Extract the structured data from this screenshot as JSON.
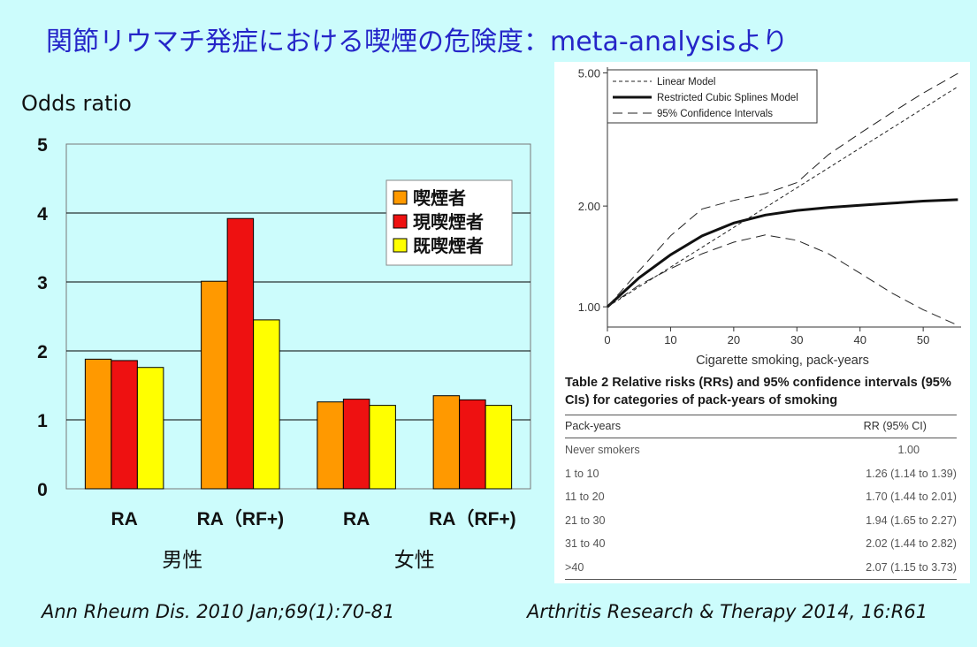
{
  "title": "関節リウマチ発症における喫煙の危険度：meta-analysisより",
  "chart_data": [
    {
      "type": "bar",
      "ylabel": "Odds ratio",
      "ylim": [
        0,
        5
      ],
      "yticks": [
        0,
        1,
        2,
        3,
        4,
        5
      ],
      "categories": [
        "RA",
        "RA（RF+)",
        "RA",
        "RA（RF+)"
      ],
      "groups": [
        {
          "label": "男性",
          "categories": [
            0,
            1
          ]
        },
        {
          "label": "女性",
          "categories": [
            2,
            3
          ]
        }
      ],
      "series": [
        {
          "name": "喫煙者",
          "color": "#ff9900",
          "values": [
            1.88,
            3.01,
            1.26,
            1.35
          ]
        },
        {
          "name": "現喫煙者",
          "color": "#ee1111",
          "values": [
            1.86,
            3.92,
            1.3,
            1.29
          ]
        },
        {
          "name": "既喫煙者",
          "color": "#ffff00",
          "values": [
            1.76,
            2.45,
            1.21,
            1.21
          ]
        }
      ],
      "grid": true,
      "legend": "top-right"
    },
    {
      "type": "line",
      "xlabel": "Cigarette smoking, pack-years",
      "ylabel": "",
      "xlim": [
        0,
        56
      ],
      "xticks": [
        0,
        10,
        20,
        30,
        40,
        50
      ],
      "ylim": [
        0.87,
        5.2
      ],
      "yscale": "log",
      "yticks": [
        1.0,
        2.0,
        5.0
      ],
      "ytick_labels": [
        "1.00",
        "2.00",
        "5.00"
      ],
      "legend": "top-left",
      "series": [
        {
          "name": "Linear Model",
          "style": "short-dash",
          "x": [
            0,
            55.5
          ],
          "y": [
            1.0,
            4.55
          ]
        },
        {
          "name": "Restricted Cubic Splines Model",
          "style": "solid-bold",
          "x": [
            0,
            5,
            10,
            15,
            20,
            25,
            30,
            35,
            40,
            45,
            50,
            55.5
          ],
          "y": [
            1.0,
            1.22,
            1.43,
            1.63,
            1.78,
            1.88,
            1.94,
            1.98,
            2.01,
            2.04,
            2.07,
            2.09
          ]
        },
        {
          "name": "95% Confidence Intervals",
          "style": "long-dash",
          "x": [
            0,
            5,
            10,
            15,
            20,
            25,
            30,
            35,
            40,
            45,
            50,
            55.5
          ],
          "y": [
            1.0,
            1.28,
            1.63,
            1.96,
            2.08,
            2.18,
            2.35,
            2.85,
            3.3,
            3.8,
            4.35,
            4.98
          ]
        },
        {
          "name": "",
          "style": "long-dash",
          "x": [
            0,
            5,
            10,
            15,
            20,
            25,
            30,
            35,
            40,
            45,
            50,
            55.5
          ],
          "y": [
            1.0,
            1.16,
            1.3,
            1.44,
            1.56,
            1.64,
            1.58,
            1.44,
            1.26,
            1.1,
            0.98,
            0.88
          ]
        }
      ]
    }
  ],
  "table": {
    "caption": "Table 2 Relative risks (RRs) and 95% confidence intervals (95% CIs) for categories of pack-years of smoking",
    "col1_header": "Pack-years",
    "col2_header": "RR (95% CI)",
    "rows": [
      {
        "label": "Never smokers",
        "value": "1.00"
      },
      {
        "label": "1 to 10",
        "value": "1.26 (1.14 to 1.39)"
      },
      {
        "label": "11 to 20",
        "value": "1.70 (1.44 to 2.01)"
      },
      {
        "label": "21 to 30",
        "value": "1.94 (1.65 to 2.27)"
      },
      {
        "label": "31 to 40",
        "value": "2.02 (1.44 to 2.82)"
      },
      {
        "label": ">40",
        "value": "2.07 (1.15 to 3.73)"
      }
    ]
  },
  "citations": {
    "left": "Ann Rheum Dis. 2010 Jan;69(1):70-81",
    "right": "Arthritis Research & Therapy 2014, 16:R61"
  }
}
